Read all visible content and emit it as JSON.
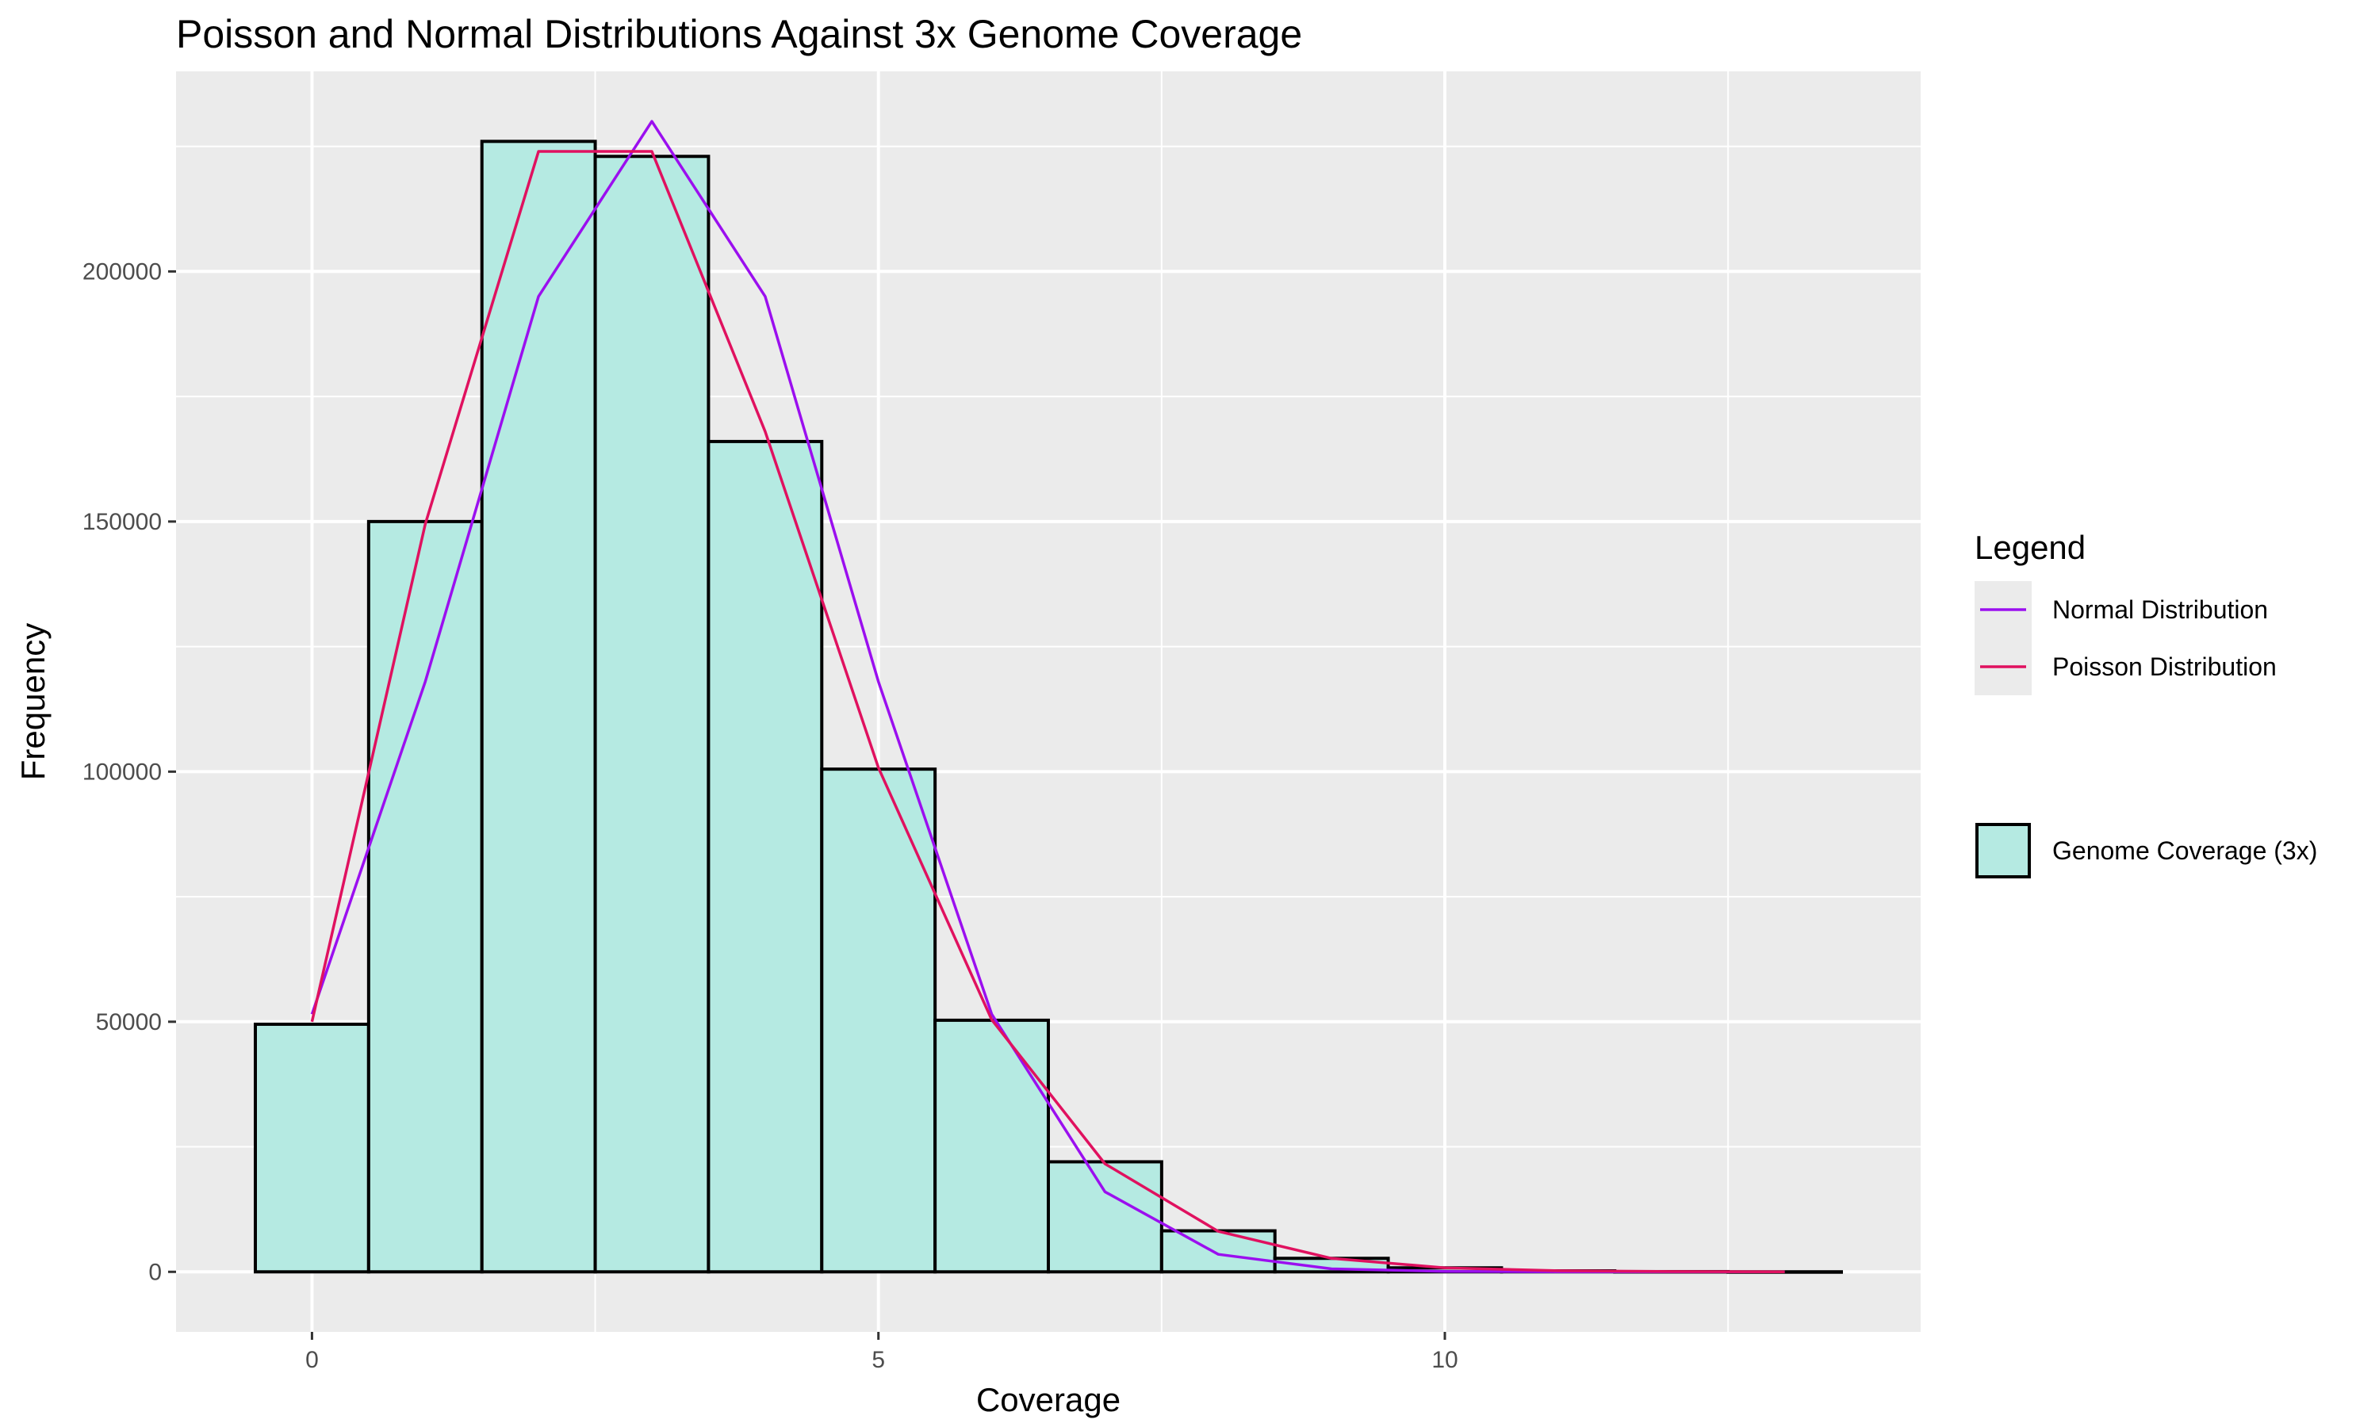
{
  "chart_data": {
    "type": "bar",
    "title": "Poisson and Normal Distributions Against 3x Genome Coverage",
    "xlabel": "Coverage",
    "ylabel": "Frequency",
    "xlim": [
      -1.2,
      14.2
    ],
    "ylim": [
      -12000,
      240000
    ],
    "x_ticks": [
      0,
      5,
      10
    ],
    "x_tick_labels": [
      "0",
      "5",
      "10"
    ],
    "y_ticks": [
      0,
      50000,
      100000,
      150000,
      200000
    ],
    "y_tick_labels": [
      "0",
      "50000",
      "100000",
      "150000",
      "200000"
    ],
    "grid": true,
    "legend_position": "right",
    "histogram": {
      "name": "Genome Coverage (3x)",
      "fill_color": "#b5eae2",
      "outline_color": "#000000",
      "bin_width": 1,
      "x": [
        0,
        1,
        2,
        3,
        4,
        5,
        6,
        7,
        8,
        9,
        10,
        11,
        12,
        13
      ],
      "values": [
        49500,
        150000,
        226000,
        223000,
        166000,
        100500,
        50300,
        22000,
        8200,
        2700,
        800,
        200,
        50,
        10
      ]
    },
    "series": [
      {
        "name": "Normal Distribution",
        "color": "#9b0fef",
        "x": [
          0,
          1,
          2,
          3,
          4,
          5,
          6,
          7,
          8,
          9,
          10,
          11,
          12,
          13
        ],
        "values": [
          51500,
          118000,
          195000,
          230000,
          195000,
          118000,
          51500,
          16000,
          3500,
          600,
          80,
          10,
          0,
          0
        ]
      },
      {
        "name": "Poisson Distribution",
        "color": "#e0115f",
        "x": [
          0,
          1,
          2,
          3,
          4,
          5,
          6,
          7,
          8,
          9,
          10,
          11,
          12,
          13
        ],
        "values": [
          50000,
          149500,
          224000,
          224000,
          168000,
          100800,
          50400,
          21600,
          8100,
          2700,
          810,
          220,
          55,
          13
        ]
      }
    ],
    "legend": {
      "title": "Legend"
    }
  }
}
